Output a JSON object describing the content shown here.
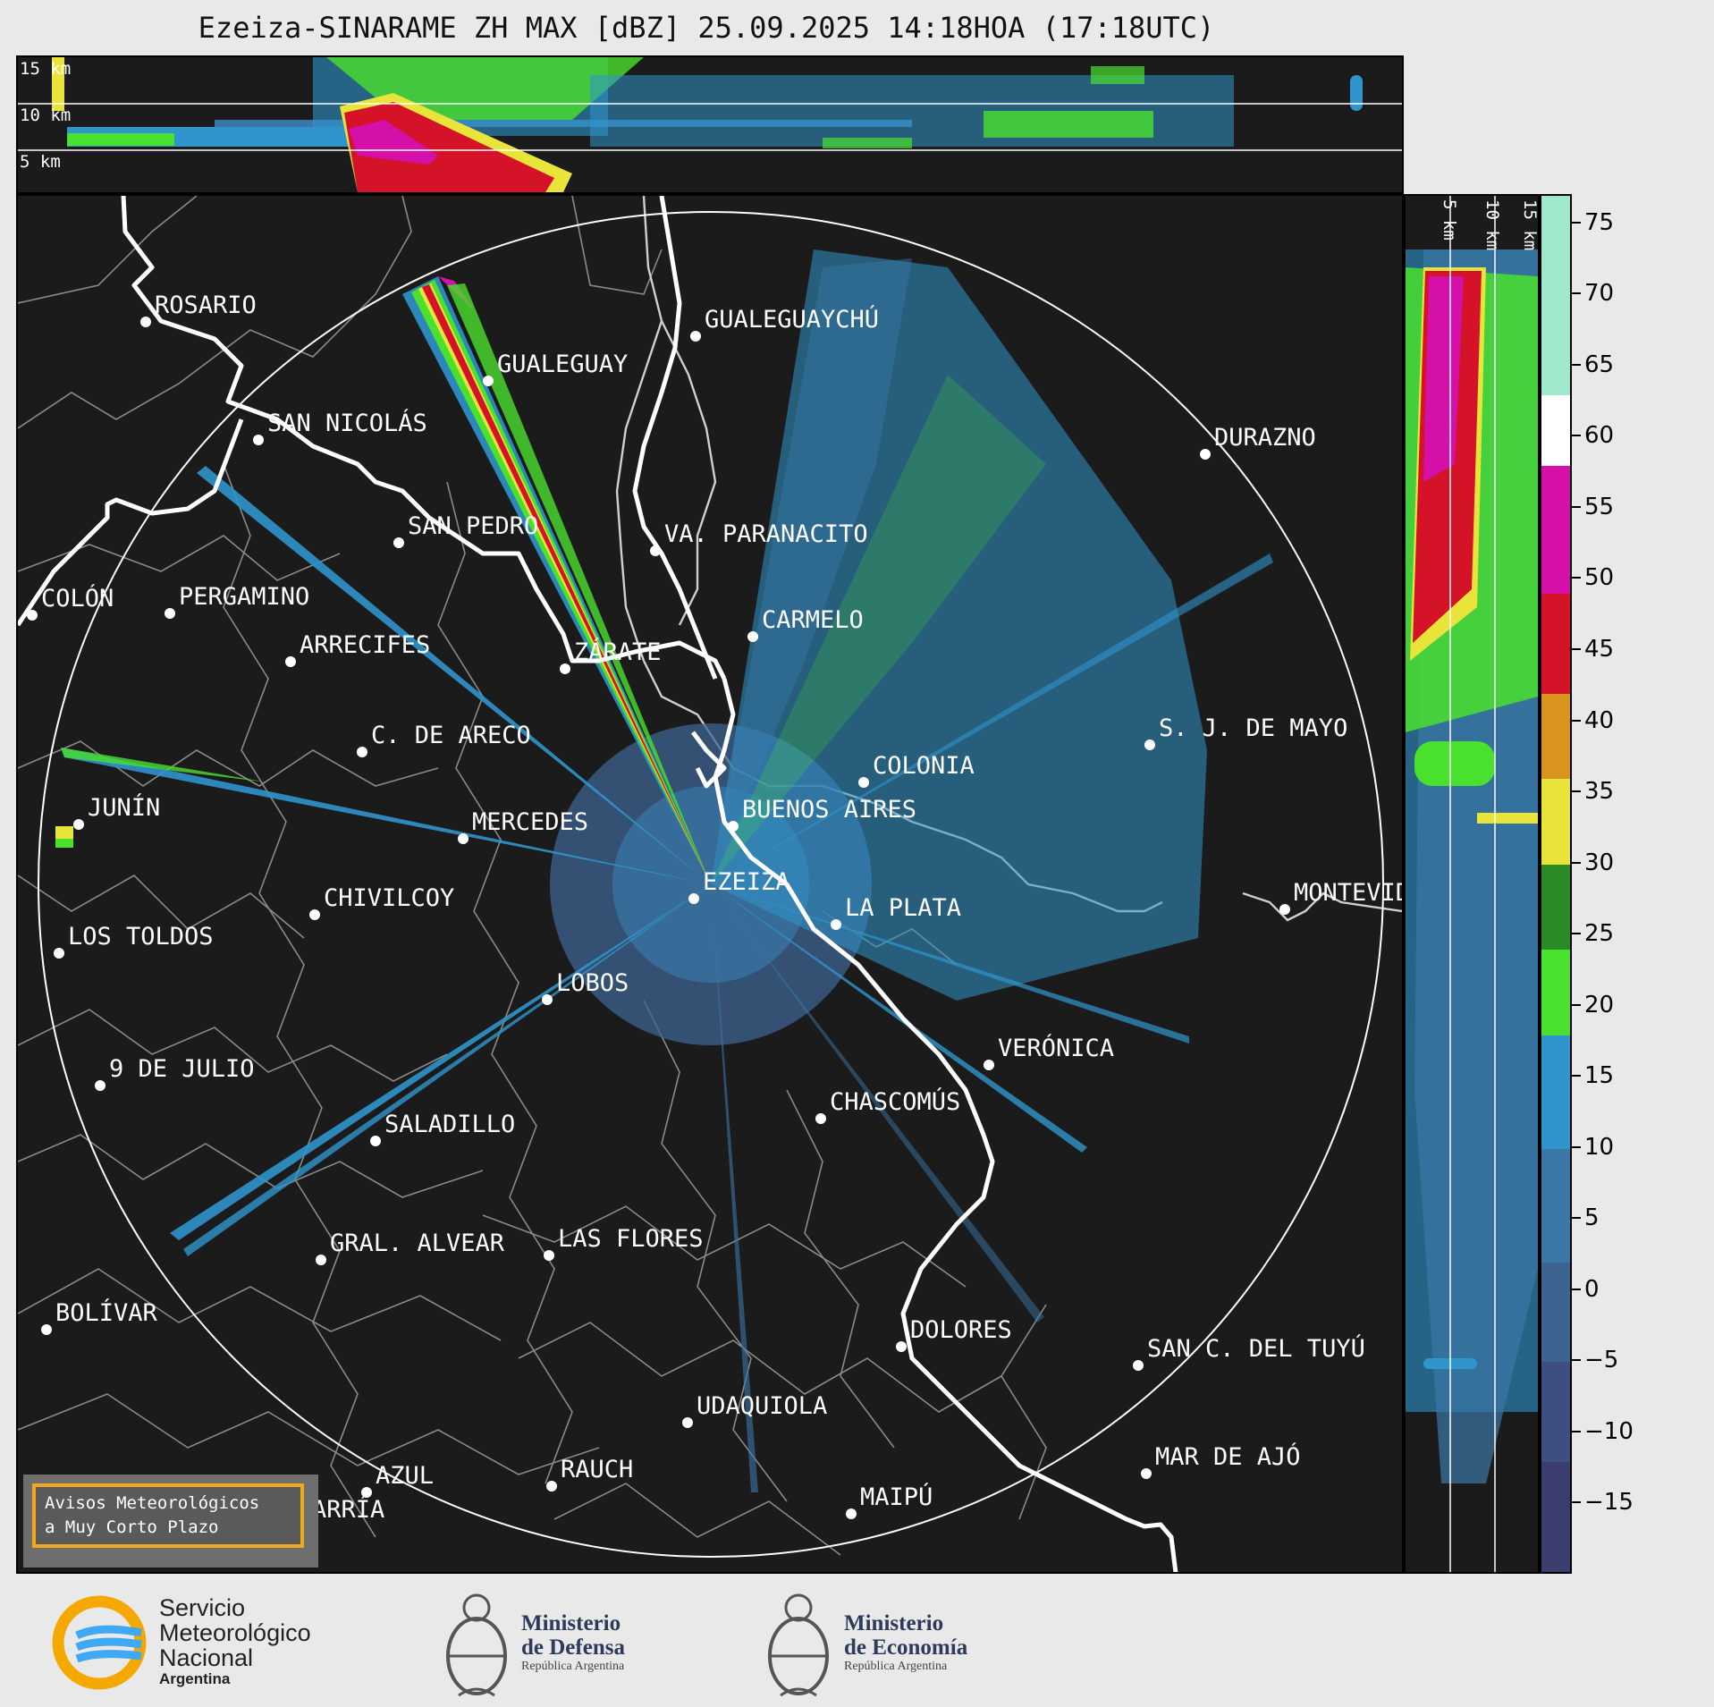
{
  "title": "Ezeiza-SINARAME ZH MAX [dBZ] 25.09.2025 14:18HOA (17:18UTC)",
  "top_panel": {
    "height_labels": [
      "15 km",
      "10 km",
      "5 km"
    ]
  },
  "side_panel": {
    "height_labels": [
      "5 km",
      "10 km",
      "15 km"
    ]
  },
  "colorbar": {
    "unit": "dBZ",
    "range": [
      -20,
      77
    ],
    "tick_labels": [
      "75",
      "70",
      "65",
      "60",
      "55",
      "50",
      "45",
      "40",
      "35",
      "30",
      "25",
      "20",
      "15",
      "10",
      "5",
      "0",
      "−5",
      "−10",
      "−15"
    ],
    "tick_values": [
      75,
      70,
      65,
      60,
      55,
      50,
      45,
      40,
      35,
      30,
      25,
      20,
      15,
      10,
      5,
      0,
      -5,
      -10,
      -15
    ],
    "scale_colors": [
      {
        "from": -20,
        "to": -12,
        "color": "#3a3d6e"
      },
      {
        "from": -12,
        "to": -5,
        "color": "#3d4f80"
      },
      {
        "from": -5,
        "to": 2,
        "color": "#3d6390"
      },
      {
        "from": 2,
        "to": 10,
        "color": "#3a77a8"
      },
      {
        "from": 10,
        "to": 18,
        "color": "#2f95cc"
      },
      {
        "from": 18,
        "to": 24,
        "color": "#4ae02e"
      },
      {
        "from": 24,
        "to": 30,
        "color": "#2a8a26"
      },
      {
        "from": 30,
        "to": 36,
        "color": "#e8e43a"
      },
      {
        "from": 36,
        "to": 42,
        "color": "#d8941c"
      },
      {
        "from": 42,
        "to": 49,
        "color": "#d41228"
      },
      {
        "from": 49,
        "to": 58,
        "color": "#d410a8"
      },
      {
        "from": 58,
        "to": 63,
        "color": "#ffffff"
      },
      {
        "from": 63,
        "to": 77,
        "color": "#9fe8cc"
      }
    ]
  },
  "cities": [
    {
      "name": "ROSARIO"
    },
    {
      "name": "GUALEGUAYCHÚ"
    },
    {
      "name": "GUALEGUAY"
    },
    {
      "name": "SAN NICOLÁS"
    },
    {
      "name": "DURAZNO"
    },
    {
      "name": "SAN PEDRO"
    },
    {
      "name": "VA. PARANACITO"
    },
    {
      "name": "COLÓN"
    },
    {
      "name": "PERGAMINO"
    },
    {
      "name": "CARMELO"
    },
    {
      "name": "ARRECIFES"
    },
    {
      "name": "ZÁRATE"
    },
    {
      "name": "C. DE ARECO"
    },
    {
      "name": "S. J. DE MAYO"
    },
    {
      "name": "COLONIA"
    },
    {
      "name": "JUNÍN"
    },
    {
      "name": "MERCEDES"
    },
    {
      "name": "BUENOS AIRES"
    },
    {
      "name": "EZEIZA"
    },
    {
      "name": "MONTEVIDEO"
    },
    {
      "name": "CHIVILCOY"
    },
    {
      "name": "LA PLATA"
    },
    {
      "name": "LOS TOLDOS"
    },
    {
      "name": "LOBOS"
    },
    {
      "name": "VERÓNICA"
    },
    {
      "name": "9 DE JULIO"
    },
    {
      "name": "CHASCOMÚS"
    },
    {
      "name": "SALADILLO"
    },
    {
      "name": "GRAL. ALVEAR"
    },
    {
      "name": "LAS FLORES"
    },
    {
      "name": "BOLÍVAR"
    },
    {
      "name": "DOLORES"
    },
    {
      "name": "SAN C. DEL TUYÚ"
    },
    {
      "name": "UDAQUIOLA"
    },
    {
      "name": "MAR DE AJÓ"
    },
    {
      "name": "AZUL"
    },
    {
      "name": "RAUCH"
    },
    {
      "name": "MAIPÚ"
    },
    {
      "name": "OLAVARRÍA"
    }
  ],
  "warning_box": {
    "line1": "Avisos Meteorológicos",
    "line2": "a Muy Corto Plazo",
    "accent": "#f2a81d"
  },
  "logos": {
    "smn": {
      "line1": "Servicio",
      "line2": "Meteorológico",
      "line3": "Nacional",
      "line4": "Argentina"
    },
    "defensa": {
      "line1": "Ministerio",
      "line2": "de Defensa",
      "line3": "República Argentina"
    },
    "economia": {
      "line1": "Ministerio",
      "line2": "de Economía",
      "line3": "República Argentina"
    }
  }
}
